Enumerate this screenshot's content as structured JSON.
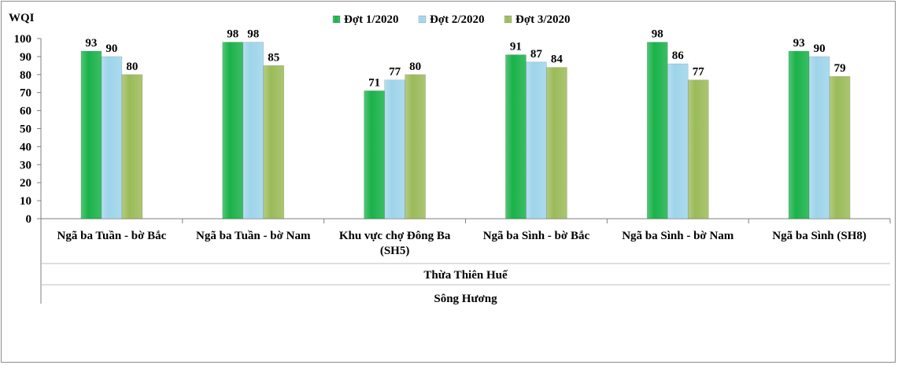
{
  "chart_data": {
    "type": "bar",
    "ylabel": "WQI",
    "ylim": [
      0,
      100
    ],
    "yticks": [
      0,
      10,
      20,
      30,
      40,
      50,
      60,
      70,
      80,
      90,
      100
    ],
    "grid": false,
    "legend_position": "top",
    "categories": [
      [
        "Ngã ba Tuần - bờ Bắc"
      ],
      [
        "Ngã ba Tuần - bờ Nam"
      ],
      [
        "Khu vực chợ Đông Ba",
        "(SH5)"
      ],
      [
        "Ngã ba Sình - bờ Bắc"
      ],
      [
        "Ngã ba Sình - bờ Nam"
      ],
      [
        "Ngã ba Sình (SH8)"
      ]
    ],
    "group_levels": [
      "Thừa Thiên Huế",
      "Sông Hương"
    ],
    "series": [
      {
        "name": "Đợt 1/2020",
        "color": "#1ab24a",
        "values": [
          93,
          98,
          71,
          91,
          98,
          93
        ]
      },
      {
        "name": "Đợt 2/2020",
        "color": "#9ed4ea",
        "values": [
          90,
          98,
          77,
          87,
          86,
          90
        ]
      },
      {
        "name": "Đợt 3/2020",
        "color": "#9bbb59",
        "values": [
          80,
          85,
          80,
          84,
          77,
          79
        ]
      }
    ]
  }
}
